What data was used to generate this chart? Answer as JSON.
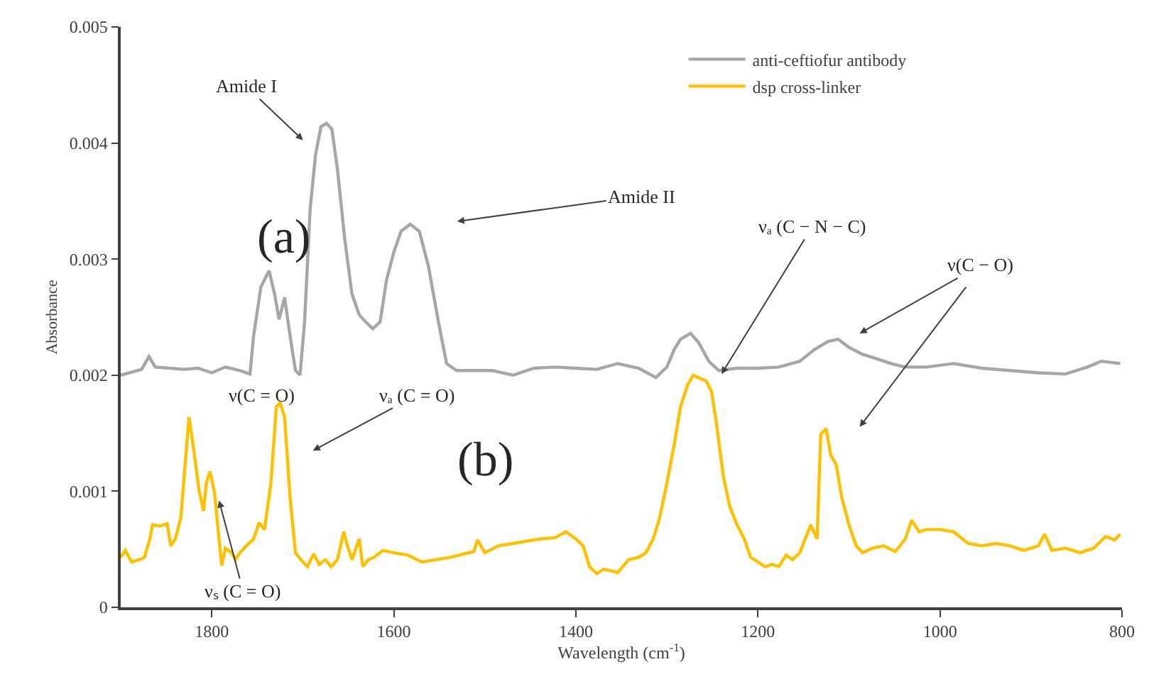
{
  "chart_data": {
    "type": "line",
    "xlabel": "Wavelength (cm$^{-1}$)",
    "ylabel": "Absorbance",
    "xlim": [
      1900,
      800
    ],
    "xticks": [
      1800,
      1600,
      1400,
      1200,
      1000,
      800
    ],
    "ylim": [
      0,
      0.005
    ],
    "yticks": [
      0,
      0.001,
      0.002,
      0.003,
      0.004,
      0.005
    ],
    "legend": "top right",
    "marker": "none",
    "line_style": "solid",
    "series": [
      {
        "name": "anti-ceftiofur antibody",
        "color": "#a6a6a6",
        "x": [
          1900,
          1877,
          1869,
          1862,
          1846,
          1831,
          1815,
          1800,
          1785,
          1769,
          1758,
          1754,
          1746,
          1737,
          1731,
          1726,
          1720,
          1714,
          1708,
          1703,
          1698,
          1692,
          1686,
          1680,
          1674,
          1668,
          1662,
          1654,
          1646,
          1638,
          1631,
          1623,
          1615,
          1608,
          1600,
          1592,
          1582,
          1572,
          1562,
          1551,
          1542,
          1531,
          1515,
          1492,
          1469,
          1446,
          1423,
          1400,
          1377,
          1354,
          1331,
          1312,
          1300,
          1292,
          1285,
          1274,
          1265,
          1254,
          1243,
          1223,
          1200,
          1177,
          1154,
          1138,
          1123,
          1112,
          1100,
          1085,
          1069,
          1054,
          1038,
          1015,
          985,
          954,
          923,
          892,
          862,
          838,
          823,
          802
        ],
        "values": [
          0.002,
          0.00205,
          0.00216,
          0.00207,
          0.00206,
          0.00205,
          0.00206,
          0.00202,
          0.00207,
          0.00204,
          0.00201,
          0.00234,
          0.00276,
          0.0029,
          0.0027,
          0.00248,
          0.00267,
          0.00234,
          0.00204,
          0.002,
          0.00246,
          0.00342,
          0.0039,
          0.00414,
          0.00417,
          0.00412,
          0.00378,
          0.00318,
          0.0027,
          0.00252,
          0.00246,
          0.0024,
          0.00246,
          0.00282,
          0.00306,
          0.00324,
          0.0033,
          0.00324,
          0.00294,
          0.00246,
          0.0021,
          0.00204,
          0.00204,
          0.00204,
          0.002,
          0.00206,
          0.00207,
          0.00206,
          0.00205,
          0.0021,
          0.00206,
          0.00198,
          0.00207,
          0.00222,
          0.00231,
          0.00236,
          0.00228,
          0.00212,
          0.00204,
          0.00206,
          0.00206,
          0.00207,
          0.00212,
          0.00222,
          0.00229,
          0.00231,
          0.00224,
          0.00218,
          0.00214,
          0.0021,
          0.00207,
          0.00207,
          0.0021,
          0.00206,
          0.00204,
          0.00202,
          0.00201,
          0.00207,
          0.00212,
          0.0021
        ]
      },
      {
        "name": "dsp cross-linker",
        "color": "#ffc000",
        "x": [
          1900,
          1895,
          1888,
          1880,
          1874,
          1868,
          1865,
          1857,
          1849,
          1845,
          1840,
          1834,
          1829,
          1825,
          1820,
          1814,
          1809,
          1806,
          1802,
          1797,
          1792,
          1789,
          1785,
          1778,
          1774,
          1769,
          1762,
          1754,
          1748,
          1742,
          1735,
          1729,
          1725,
          1720,
          1714,
          1708,
          1702,
          1695,
          1688,
          1682,
          1675,
          1669,
          1662,
          1655,
          1651,
          1646,
          1638,
          1634,
          1628,
          1622,
          1612,
          1600,
          1585,
          1569,
          1554,
          1538,
          1523,
          1512,
          1508,
          1500,
          1485,
          1469,
          1454,
          1438,
          1423,
          1411,
          1400,
          1392,
          1385,
          1377,
          1369,
          1354,
          1342,
          1331,
          1323,
          1315,
          1308,
          1300,
          1292,
          1285,
          1277,
          1271,
          1266,
          1257,
          1251,
          1246,
          1238,
          1231,
          1223,
          1215,
          1208,
          1200,
          1192,
          1185,
          1177,
          1169,
          1162,
          1154,
          1142,
          1135,
          1131,
          1125,
          1120,
          1114,
          1108,
          1100,
          1092,
          1085,
          1074,
          1062,
          1049,
          1038,
          1031,
          1023,
          1015,
          1000,
          985,
          969,
          954,
          938,
          923,
          908,
          892,
          885,
          877,
          862,
          846,
          831,
          818,
          808,
          802
        ],
        "values": [
          0.00043,
          0.00049,
          0.00039,
          0.00041,
          0.00043,
          0.00059,
          0.00071,
          0.0007,
          0.00072,
          0.00053,
          0.00059,
          0.00077,
          0.00125,
          0.00164,
          0.00137,
          0.00101,
          0.00083,
          0.00107,
          0.00117,
          0.00099,
          0.00059,
          0.00036,
          0.00051,
          0.00047,
          0.00041,
          0.00047,
          0.00053,
          0.00059,
          0.00073,
          0.00067,
          0.00107,
          0.00173,
          0.00176,
          0.00164,
          0.00095,
          0.00047,
          0.00041,
          0.00035,
          0.00046,
          0.00037,
          0.00041,
          0.00035,
          0.00041,
          0.00065,
          0.00053,
          0.00041,
          0.00059,
          0.00035,
          0.00041,
          0.00043,
          0.00049,
          0.00047,
          0.00045,
          0.00039,
          0.00041,
          0.00043,
          0.00046,
          0.00048,
          0.00058,
          0.00047,
          0.00053,
          0.00055,
          0.00057,
          0.00059,
          0.0006,
          0.00065,
          0.00059,
          0.00053,
          0.00035,
          0.00029,
          0.00033,
          0.0003,
          0.00041,
          0.00043,
          0.00047,
          0.00059,
          0.00077,
          0.00107,
          0.0014,
          0.00173,
          0.00192,
          0.002,
          0.00198,
          0.00195,
          0.00186,
          0.00161,
          0.00113,
          0.00087,
          0.00071,
          0.00059,
          0.00043,
          0.00039,
          0.00035,
          0.00037,
          0.00035,
          0.00045,
          0.00041,
          0.00047,
          0.00071,
          0.00059,
          0.00149,
          0.00154,
          0.00131,
          0.00123,
          0.00095,
          0.00071,
          0.00053,
          0.00047,
          0.00051,
          0.00053,
          0.00048,
          0.00059,
          0.00075,
          0.00065,
          0.00067,
          0.00067,
          0.00065,
          0.00055,
          0.00053,
          0.00055,
          0.00053,
          0.00049,
          0.00053,
          0.00063,
          0.00049,
          0.00051,
          0.00047,
          0.00051,
          0.00061,
          0.00058,
          0.00063
        ]
      }
    ],
    "annotations": [
      "Amide I",
      "Amide II",
      "(a)",
      "(b)",
      "ν(C = O)",
      "νₐ (C = O)",
      {
        "text": "νₛ (C = O)",
        "x": 1792,
        "y": 0.00092
      },
      {
        "text": "νₐ (C − N − C)",
        "x": 1240,
        "y": 0.00201
      },
      "ν(C − O)"
    ]
  }
}
